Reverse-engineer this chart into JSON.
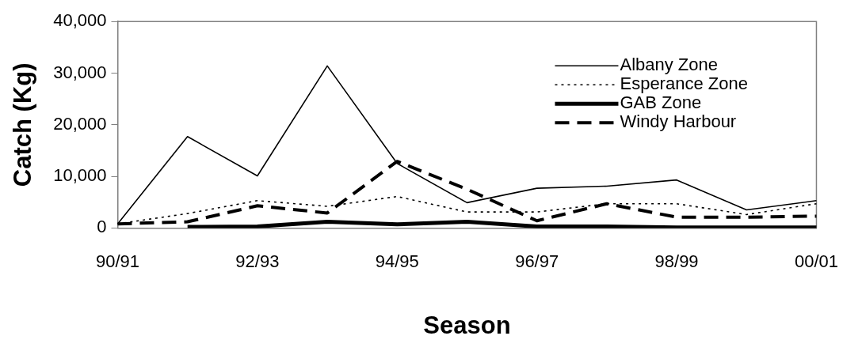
{
  "chart_data": {
    "type": "line",
    "xlabel": "Season",
    "ylabel": "Catch (Kg)",
    "categories": [
      "90/91",
      null,
      "92/93",
      null,
      "94/95",
      null,
      "96/97",
      null,
      "98/99",
      null,
      "00/01"
    ],
    "ylim": [
      0,
      40000
    ],
    "yticks": [
      {
        "value": 0,
        "label": "0"
      },
      {
        "value": 10000,
        "label": "10,000"
      },
      {
        "value": 20000,
        "label": "20,000"
      },
      {
        "value": 30000,
        "label": "30,000"
      },
      {
        "value": 40000,
        "label": "40,000"
      }
    ],
    "grid": false,
    "legend": "top right",
    "marker": "none",
    "series": [
      {
        "name": "Albany Zone",
        "color": "#000000",
        "line_style": "solid",
        "values": [
          800,
          17700,
          10100,
          31400,
          12500,
          4900,
          7700,
          8100,
          9300,
          3500,
          5300
        ]
      },
      {
        "name": "Esperance Zone",
        "color": "#000000",
        "line_style": "dotted",
        "values": [
          800,
          2800,
          5300,
          4200,
          6100,
          3100,
          3100,
          4700,
          4700,
          2600,
          4700
        ]
      },
      {
        "name": "GAB Zone",
        "color": "#000000",
        "line_style": "solid",
        "values": [
          null,
          200,
          300,
          1200,
          700,
          1200,
          300,
          300,
          100,
          100,
          100
        ]
      },
      {
        "name": "Windy Harbour",
        "color": "#000000",
        "line_style": "dashed",
        "values": [
          800,
          1200,
          4300,
          2900,
          12900,
          7500,
          1400,
          4700,
          2100,
          2100,
          2300
        ]
      }
    ]
  }
}
